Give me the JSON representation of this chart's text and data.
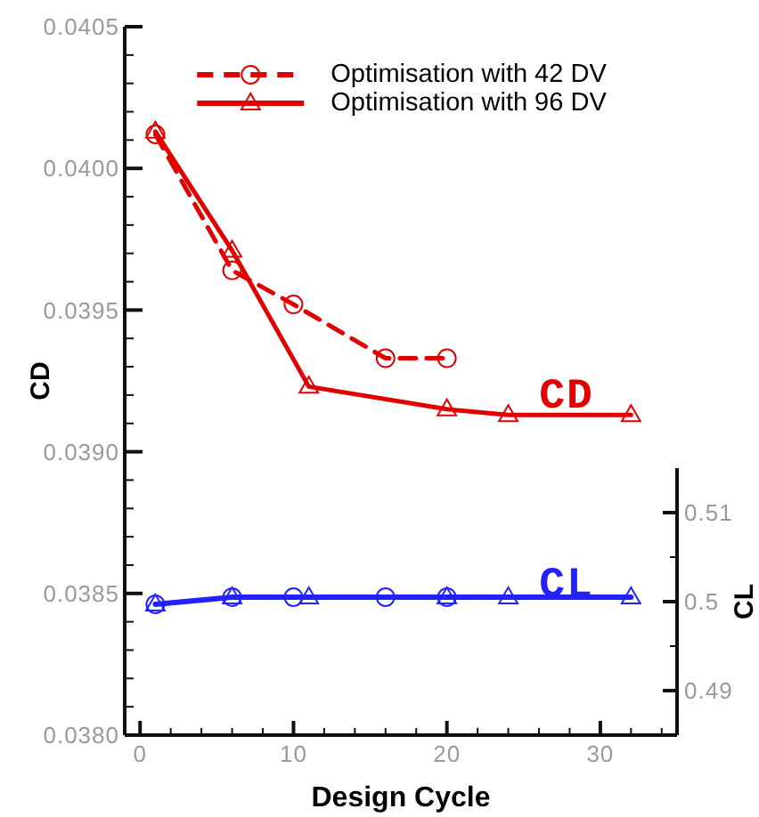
{
  "chart_data": {
    "type": "line",
    "xlabel": "Design Cycle",
    "ylabel": "CD",
    "y2label": "CL",
    "xlim": [
      -1,
      35
    ],
    "xticks": [
      0,
      {
        "value": 2,
        "label": null
      },
      {
        "value": 4,
        "label": null
      },
      {
        "value": 6,
        "label": null
      },
      {
        "value": 8,
        "label": null
      },
      10,
      {
        "value": 12,
        "label": null
      },
      {
        "value": 14,
        "label": null
      },
      {
        "value": 16,
        "label": null
      },
      {
        "value": 18,
        "label": null
      },
      20,
      {
        "value": 22,
        "label": null
      },
      {
        "value": 24,
        "label": null
      },
      {
        "value": 26,
        "label": null
      },
      {
        "value": 28,
        "label": null
      },
      30,
      {
        "value": 32,
        "label": null
      },
      {
        "value": 34,
        "label": null
      }
    ],
    "ylim": [
      0.038,
      0.0405
    ],
    "yticks": [
      {
        "value": 0.038,
        "label": "0.0380"
      },
      {
        "value": 0.0381,
        "label": null
      },
      {
        "value": 0.0382,
        "label": null
      },
      {
        "value": 0.0383,
        "label": null
      },
      {
        "value": 0.0384,
        "label": null
      },
      {
        "value": 0.0385,
        "label": "0.0385"
      },
      {
        "value": 0.0386,
        "label": null
      },
      {
        "value": 0.0387,
        "label": null
      },
      {
        "value": 0.0388,
        "label": null
      },
      {
        "value": 0.0389,
        "label": null
      },
      {
        "value": 0.039,
        "label": "0.0390"
      },
      {
        "value": 0.0391,
        "label": null
      },
      {
        "value": 0.0392,
        "label": null
      },
      {
        "value": 0.0393,
        "label": null
      },
      {
        "value": 0.0394,
        "label": null
      },
      {
        "value": 0.0395,
        "label": "0.0395"
      },
      {
        "value": 0.0396,
        "label": null
      },
      {
        "value": 0.0397,
        "label": null
      },
      {
        "value": 0.0398,
        "label": null
      },
      {
        "value": 0.0399,
        "label": null
      },
      {
        "value": 0.04,
        "label": "0.0400"
      },
      {
        "value": 0.0401,
        "label": null
      },
      {
        "value": 0.0402,
        "label": null
      },
      {
        "value": 0.0403,
        "label": null
      },
      {
        "value": 0.0404,
        "label": null
      },
      0.0405
    ],
    "y2lim": [
      0.485,
      0.515
    ],
    "y2ticks": [
      0.49,
      {
        "value": 0.495,
        "label": null
      },
      0.5,
      {
        "value": 0.505,
        "label": null
      },
      0.51
    ],
    "series": [
      {
        "name": "Optimisation with 42 DV",
        "color": "#e00000",
        "marker": "circle",
        "line_style": "dashed",
        "x": [
          1,
          6,
          10,
          16,
          20
        ],
        "values": [
          0.04012,
          0.03964,
          0.03952,
          0.03933,
          0.03933
        ]
      },
      {
        "name": "Optimisation with 96 DV",
        "color": "#e00000",
        "marker": "triangle",
        "line_style": "solid",
        "x": [
          1,
          6,
          11,
          20,
          24,
          32
        ],
        "values": [
          0.04013,
          0.03971,
          0.03923,
          0.03915,
          0.03913,
          0.03913
        ]
      },
      {
        "type": "scatter",
        "color": "#2222ff",
        "axis": "y2",
        "marker": "circle",
        "x": [
          1,
          6,
          10,
          16,
          20
        ],
        "values": [
          0.4997,
          0.5005,
          0.5005,
          0.5005,
          0.5005
        ]
      },
      {
        "color": "#2222ff",
        "axis": "y2",
        "marker": "triangle",
        "line_style": "solid",
        "x": [
          1,
          6,
          11,
          20,
          24,
          32
        ],
        "values": [
          0.4997,
          0.5005,
          0.5005,
          0.5005,
          0.5005,
          0.5005
        ]
      }
    ],
    "annotations": [
      "CD",
      "CL"
    ],
    "legend": "top"
  }
}
